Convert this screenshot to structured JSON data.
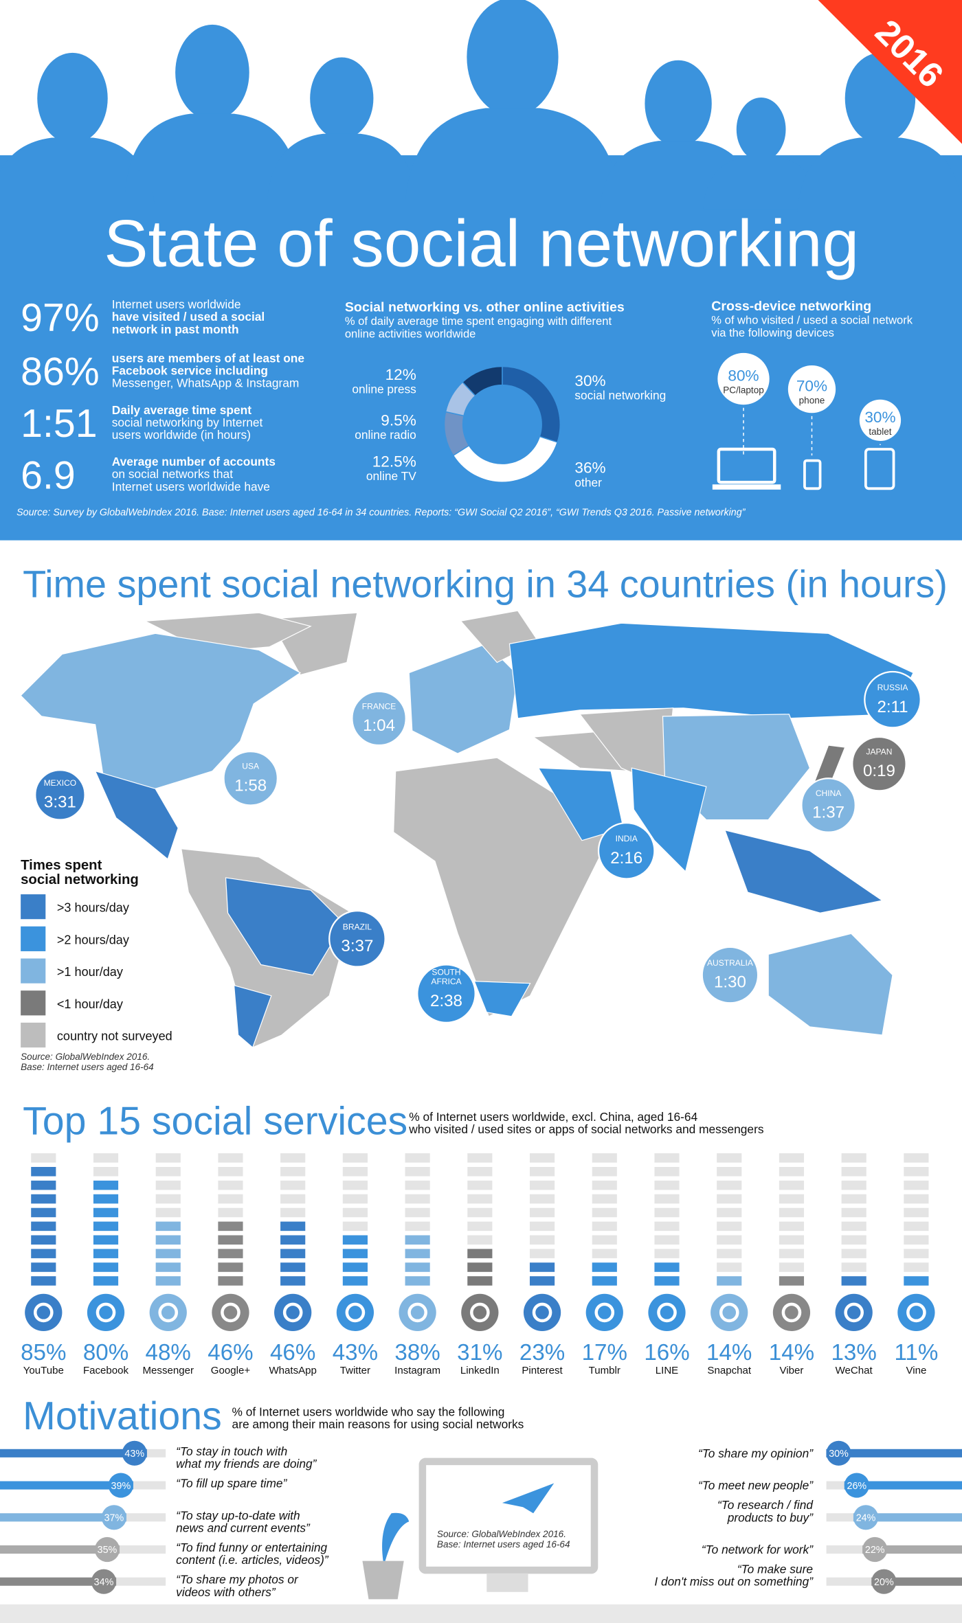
{
  "header": {
    "badge": "2016",
    "title": "State of social networking"
  },
  "stats": [
    {
      "value": "97%",
      "lines": [
        "Internet users worldwide",
        "have visited / used a social",
        "network in past month"
      ]
    },
    {
      "value": "86%",
      "lines": [
        "users are members of at least one",
        "Facebook service including",
        "Messenger, WhatsApp & Instagram"
      ]
    },
    {
      "value": "1:51",
      "lines": [
        "Daily average time spent",
        "social networking by Internet",
        "users worldwide (in hours)"
      ]
    },
    {
      "value": "6.9",
      "lines": [
        "Average number of accounts",
        "on social networks that",
        "Internet users worldwide have"
      ]
    }
  ],
  "activities": {
    "title": "Social networking vs. other online activities",
    "subtitle": [
      "% of daily average time spent engaging with different",
      "online activities worldwide"
    ],
    "segments": [
      {
        "name": "social networking",
        "value": 30,
        "value_label": "30%",
        "color": "#1f5fa8"
      },
      {
        "name": "other",
        "value": 36,
        "value_label": "36%",
        "color": "#ffffff"
      },
      {
        "name": "online TV",
        "value": 12.5,
        "value_label": "12.5%",
        "color": "#6f93c6"
      },
      {
        "name": "online radio",
        "value": 9.5,
        "value_label": "9.5%",
        "color": "#a9c3e6"
      },
      {
        "name": "online press",
        "value": 12,
        "value_label": "12%",
        "color": "#123a6e"
      }
    ]
  },
  "devices": {
    "title": "Cross-device networking",
    "subtitle": [
      "% of who visited / used a social network",
      "via the following devices"
    ],
    "items": [
      {
        "name": "PC/laptop",
        "value": "80%"
      },
      {
        "name": "phone",
        "value": "70%"
      },
      {
        "name": "tablet",
        "value": "30%"
      }
    ]
  },
  "source": "Source: Survey by GlobalWebIndex 2016. Base: Internet users aged 16-64 in 34 countries. Reports: “GWI Social Q2 2016”, “GWI Trends Q3 2016. Passive networking”",
  "map": {
    "title": "Time spent social networking in 34 countries (in hours)",
    "countries": [
      {
        "name": [
          "MEXICO"
        ],
        "time": "3:31",
        "color": "#3a7fc8"
      },
      {
        "name": [
          "USA"
        ],
        "time": "1:58",
        "color": "#80b5e0"
      },
      {
        "name": [
          "FRANCE"
        ],
        "time": "1:04",
        "color": "#80b5e0"
      },
      {
        "name": [
          "RUSSIA"
        ],
        "time": "2:11",
        "color": "#3b93dd"
      },
      {
        "name": [
          "JAPAN"
        ],
        "time": "0:19",
        "color": "#7a7a7a"
      },
      {
        "name": [
          "CHINA"
        ],
        "time": "1:37",
        "color": "#80b5e0"
      },
      {
        "name": [
          "INDIA"
        ],
        "time": "2:16",
        "color": "#3b93dd"
      },
      {
        "name": [
          "BRAZIL"
        ],
        "time": "3:37",
        "color": "#3a7fc8"
      },
      {
        "name": [
          "SOUTH",
          "AFRICA"
        ],
        "time": "2:38",
        "color": "#3b93dd"
      },
      {
        "name": [
          "AUSTRALIA"
        ],
        "time": "1:30",
        "color": "#80b5e0"
      }
    ],
    "legend_title": [
      "Times spent",
      "social networking"
    ],
    "legend": [
      {
        "label": ">3 hours/day",
        "color": "#3a7fc8"
      },
      {
        "label": ">2 hours/day",
        "color": "#3b93dd"
      },
      {
        "label": ">1 hour/day",
        "color": "#80b5e0"
      },
      {
        "label": "<1 hour/day",
        "color": "#7a7a7a"
      },
      {
        "label": "country not surveyed",
        "color": "#bdbdbd"
      }
    ],
    "source": [
      "Source: GlobalWebIndex 2016.",
      "Base: Internet users aged 16-64"
    ]
  },
  "services": {
    "title": "Top 15 social services",
    "subtitle": [
      "% of Internet users worldwide, excl. China, aged 16-64",
      "who visited / used sites or apps of social networks and messengers"
    ],
    "items": [
      {
        "name": "YouTube",
        "value": 85,
        "value_label": "85%",
        "color": "#3a7fc8"
      },
      {
        "name": "Facebook",
        "value": 80,
        "value_label": "80%",
        "color": "#3b93dd"
      },
      {
        "name": "Messenger",
        "value": 48,
        "value_label": "48%",
        "color": "#80b5e0"
      },
      {
        "name": "Google+",
        "value": 46,
        "value_label": "46%",
        "color": "#888888"
      },
      {
        "name": "WhatsApp",
        "value": 46,
        "value_label": "46%",
        "color": "#3a7fc8"
      },
      {
        "name": "Twitter",
        "value": 43,
        "value_label": "43%",
        "color": "#3b93dd"
      },
      {
        "name": "Instagram",
        "value": 38,
        "value_label": "38%",
        "color": "#80b5e0"
      },
      {
        "name": "LinkedIn",
        "value": 31,
        "value_label": "31%",
        "color": "#7a7a7a"
      },
      {
        "name": "Pinterest",
        "value": 23,
        "value_label": "23%",
        "color": "#3a7fc8"
      },
      {
        "name": "Tumblr",
        "value": 17,
        "value_label": "17%",
        "color": "#3b93dd"
      },
      {
        "name": "LINE",
        "value": 16,
        "value_label": "16%",
        "color": "#3b93dd"
      },
      {
        "name": "Snapchat",
        "value": 14,
        "value_label": "14%",
        "color": "#80b5e0"
      },
      {
        "name": "Viber",
        "value": 14,
        "value_label": "14%",
        "color": "#888888"
      },
      {
        "name": "WeChat",
        "value": 13,
        "value_label": "13%",
        "color": "#3a7fc8"
      },
      {
        "name": "Vine",
        "value": 11,
        "value_label": "11%",
        "color": "#3b93dd"
      }
    ]
  },
  "motivations": {
    "title": "Motivations",
    "subtitle": [
      "% of Internet users worldwide who say the following",
      "are among their main reasons for using social networks"
    ],
    "left": [
      {
        "quote": [
          "“To stay in touch with",
          "what my friends are doing”"
        ],
        "value": 43,
        "value_label": "43%",
        "color": "#3a7fc8"
      },
      {
        "quote": [
          "“To fill up spare time”"
        ],
        "value": 39,
        "value_label": "39%",
        "color": "#3b93dd"
      },
      {
        "quote": [
          "“To stay up-to-date with",
          "news and current events”"
        ],
        "value": 37,
        "value_label": "37%",
        "color": "#80b5e0"
      },
      {
        "quote": [
          "“To find funny or entertaining",
          "content (i.e. articles, videos)”"
        ],
        "value": 35,
        "value_label": "35%",
        "color": "#aaaaaa"
      },
      {
        "quote": [
          "“To share my photos or",
          "videos with others”"
        ],
        "value": 34,
        "value_label": "34%",
        "color": "#888888"
      }
    ],
    "right": [
      {
        "quote": [
          "“To share my opinion”"
        ],
        "value": 30,
        "value_label": "30%",
        "color": "#3a7fc8"
      },
      {
        "quote": [
          "“To meet new people”"
        ],
        "value": 26,
        "value_label": "26%",
        "color": "#3b93dd"
      },
      {
        "quote": [
          "“To research / find",
          "products to buy”"
        ],
        "value": 24,
        "value_label": "24%",
        "color": "#80b5e0"
      },
      {
        "quote": [
          "“To network for work”"
        ],
        "value": 22,
        "value_label": "22%",
        "color": "#aaaaaa"
      },
      {
        "quote": [
          "“To make sure",
          "I don't miss out on something”"
        ],
        "value": 20,
        "value_label": "20%",
        "color": "#888888"
      }
    ],
    "source": [
      "Source: GlobalWebIndex 2016.",
      "Base: Internet users aged 16-64"
    ]
  }
}
